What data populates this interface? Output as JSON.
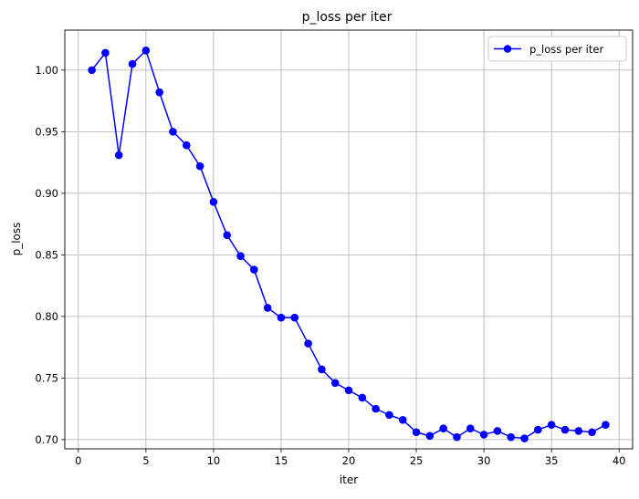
{
  "chart_data": {
    "type": "line",
    "title": "p_loss per iter",
    "xlabel": "iter",
    "ylabel": "p_loss",
    "xlim": [
      -1,
      41
    ],
    "ylim": [
      0.6925,
      1.0325
    ],
    "xticks": [
      0,
      5,
      10,
      15,
      20,
      25,
      30,
      35,
      40
    ],
    "xtick_labels": [
      "0",
      "5",
      "10",
      "15",
      "20",
      "25",
      "30",
      "35",
      "40"
    ],
    "yticks": [
      0.7,
      0.75,
      0.8,
      0.85,
      0.9,
      0.95,
      1.0
    ],
    "ytick_labels": [
      "0.70",
      "0.75",
      "0.80",
      "0.85",
      "0.90",
      "0.95",
      "1.00"
    ],
    "grid": true,
    "legend_position": "top-right",
    "series": [
      {
        "name": "p_loss per iter",
        "color": "#0000ff",
        "marker": "circle",
        "x": [
          1,
          2,
          3,
          4,
          5,
          6,
          7,
          8,
          9,
          10,
          11,
          12,
          13,
          14,
          15,
          16,
          17,
          18,
          19,
          20,
          21,
          22,
          23,
          24,
          25,
          26,
          27,
          28,
          29,
          30,
          31,
          32,
          33,
          34,
          35,
          36,
          37,
          38,
          39
        ],
        "y": [
          1.0,
          1.014,
          0.931,
          1.005,
          1.016,
          0.982,
          0.95,
          0.939,
          0.922,
          0.893,
          0.866,
          0.849,
          0.838,
          0.807,
          0.799,
          0.799,
          0.778,
          0.757,
          0.746,
          0.74,
          0.734,
          0.725,
          0.72,
          0.716,
          0.706,
          0.703,
          0.709,
          0.702,
          0.709,
          0.704,
          0.707,
          0.702,
          0.701,
          0.708,
          0.712,
          0.708,
          0.707,
          0.706,
          0.712
        ]
      }
    ]
  }
}
